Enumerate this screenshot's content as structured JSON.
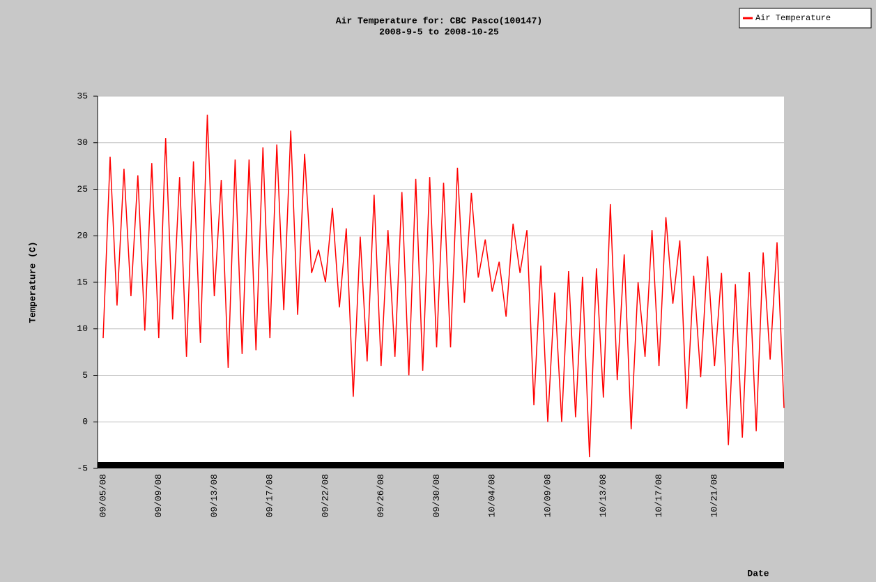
{
  "chart_data": {
    "type": "line",
    "title": "Air Temperature for: CBC Pasco(100147)",
    "subtitle": "2008-9-5 to 2008-10-25",
    "ylabel": "Temperature (C)",
    "xlabel": "Date",
    "legend_position": "upper right",
    "grid": true,
    "ylim": [
      -5,
      35
    ],
    "yticks": [
      -5,
      0,
      5,
      10,
      15,
      20,
      25,
      30,
      35
    ],
    "categories": [
      "09/05/08",
      null,
      null,
      null,
      null,
      null,
      null,
      null,
      "09/09/08",
      null,
      null,
      null,
      null,
      null,
      null,
      null,
      "09/13/08",
      null,
      null,
      null,
      null,
      null,
      null,
      null,
      "09/17/08",
      null,
      null,
      null,
      null,
      null,
      null,
      null,
      "09/22/08",
      null,
      null,
      null,
      null,
      null,
      null,
      null,
      "09/26/08",
      null,
      null,
      null,
      null,
      null,
      null,
      null,
      "09/30/08",
      null,
      null,
      null,
      null,
      null,
      null,
      null,
      "10/04/08",
      null,
      null,
      null,
      null,
      null,
      null,
      null,
      "10/09/08",
      null,
      null,
      null,
      null,
      null,
      null,
      null,
      "10/13/08",
      null,
      null,
      null,
      null,
      null,
      null,
      null,
      "10/17/08",
      null,
      null,
      null,
      null,
      null,
      null,
      null,
      "10/21/08",
      null,
      null,
      null,
      null,
      null,
      null,
      null,
      null,
      null,
      null
    ],
    "series": [
      {
        "name": "Air Temperature",
        "color": "#ff0000",
        "values": [
          9,
          28.5,
          12.5,
          27.2,
          13.5,
          26.5,
          9.8,
          27.8,
          9,
          30.5,
          11,
          26.3,
          7,
          28,
          8.5,
          33,
          13.5,
          26,
          5.8,
          28.2,
          7.3,
          28.2,
          7.7,
          29.5,
          9,
          29.8,
          12,
          31.3,
          11.5,
          28.8,
          16,
          18.5,
          15,
          23,
          12.3,
          20.8,
          2.7,
          19.9,
          6.5,
          24.4,
          6,
          20.6,
          7,
          24.7,
          5,
          26.1,
          5.5,
          26.3,
          8,
          25.7,
          8,
          27.3,
          12.8,
          24.6,
          15.5,
          19.6,
          14,
          17.2,
          11.3,
          21.3,
          16,
          20.6,
          1.8,
          16.8,
          0,
          13.9,
          0,
          16.2,
          0.5,
          15.6,
          -3.8,
          16.5,
          2.6,
          23.4,
          4.5,
          18,
          -0.8,
          15,
          7,
          20.6,
          6,
          22,
          12.7,
          19.5,
          1.4,
          15.7,
          4.8,
          17.8,
          6,
          16,
          -2.5,
          14.8,
          -1.7,
          16.1,
          -1,
          18.2,
          6.7,
          19.3,
          1.5
        ]
      }
    ]
  }
}
